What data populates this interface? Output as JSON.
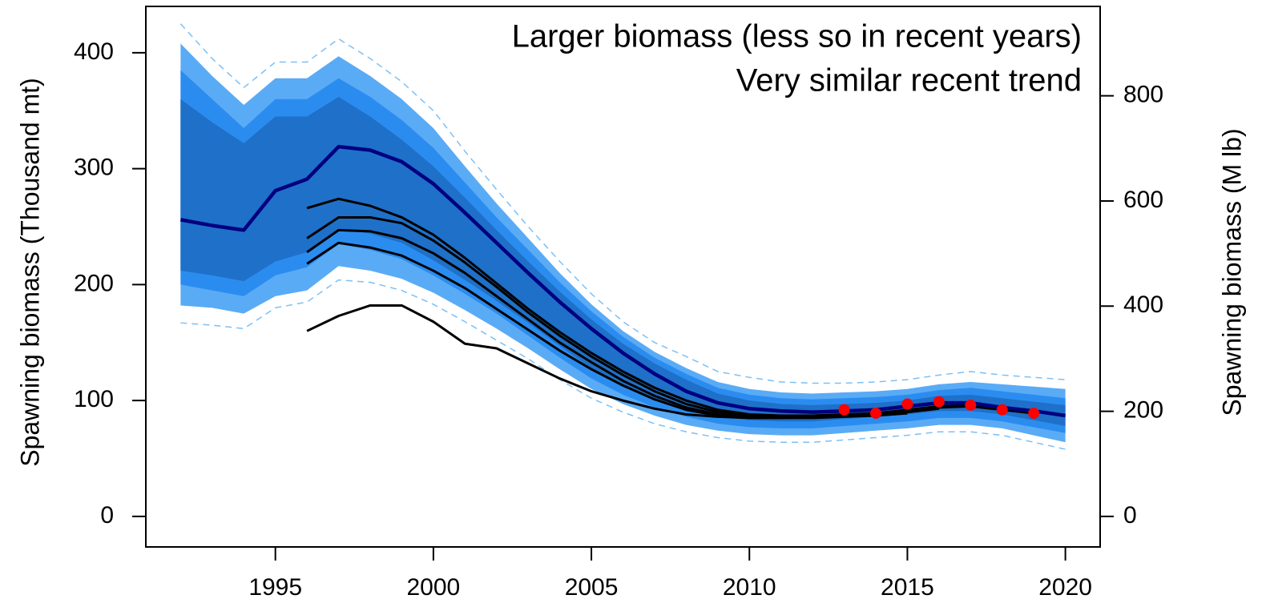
{
  "chart_data": {
    "type": "line",
    "y_label": "Spawning biomass (Thousand mt)",
    "y2_label": "Spawning biomass (M lb)",
    "annotations": [
      "Larger biomass (less so in recent years)",
      "Very similar recent trend"
    ],
    "x": [
      1992,
      1993,
      1994,
      1995,
      1996,
      1997,
      1998,
      1999,
      2000,
      2001,
      2002,
      2003,
      2004,
      2005,
      2006,
      2007,
      2008,
      2009,
      2010,
      2011,
      2012,
      2013,
      2014,
      2015,
      2016,
      2017,
      2018,
      2019,
      2020
    ],
    "xlim": [
      1990.9,
      2021.1
    ],
    "xticks": [
      1995,
      2000,
      2005,
      2010,
      2015,
      2020
    ],
    "ylim": [
      -26.3,
      440
    ],
    "yticks": [
      0,
      100,
      200,
      300,
      400
    ],
    "y2lim": [
      -58,
      970
    ],
    "y2ticks": [
      0,
      200,
      400,
      600,
      800
    ],
    "bands": [
      {
        "color": "#5aabf5",
        "upper": [
          408,
          380,
          355,
          378,
          378,
          397,
          380,
          360,
          335,
          302,
          270,
          240,
          210,
          183,
          160,
          142,
          128,
          116,
          110,
          107,
          106,
          107,
          108,
          110,
          114,
          116,
          114,
          112,
          110
        ],
        "lower": [
          182,
          180,
          175,
          190,
          195,
          216,
          212,
          205,
          193,
          178,
          162,
          145,
          127,
          110,
          97,
          87,
          79,
          74,
          71,
          70,
          70,
          72,
          74,
          76,
          79,
          79,
          76,
          70,
          64
        ]
      },
      {
        "color": "#2b8cf0",
        "upper": [
          385,
          360,
          335,
          360,
          360,
          378,
          362,
          342,
          318,
          288,
          258,
          230,
          202,
          177,
          155,
          137,
          123,
          111,
          105,
          102,
          101,
          102,
          103,
          105,
          109,
          111,
          108,
          105,
          102
        ],
        "lower": [
          200,
          195,
          190,
          208,
          215,
          235,
          230,
          222,
          208,
          192,
          175,
          156,
          137,
          119,
          105,
          94,
          86,
          80,
          77,
          76,
          76,
          78,
          80,
          82,
          85,
          85,
          82,
          77,
          72
        ]
      },
      {
        "color": "#1f70c8",
        "upper": [
          360,
          340,
          322,
          345,
          345,
          362,
          345,
          325,
          302,
          275,
          247,
          220,
          194,
          170,
          149,
          132,
          118,
          106,
          100,
          97,
          96,
          97,
          98,
          100,
          104,
          105,
          102,
          99,
          96
        ],
        "lower": [
          212,
          208,
          203,
          220,
          228,
          248,
          244,
          236,
          221,
          204,
          186,
          167,
          147,
          128,
          112,
          101,
          92,
          86,
          83,
          82,
          82,
          84,
          86,
          88,
          91,
          91,
          88,
          83,
          78
        ]
      }
    ],
    "series": [
      {
        "color": "#7cc0f5",
        "dashed": true,
        "width": 1.5,
        "values": [
          425,
          395,
          370,
          392,
          392,
          412,
          395,
          375,
          350,
          315,
          282,
          250,
          220,
          192,
          168,
          150,
          138,
          125,
          120,
          116,
          115,
          115,
          116,
          118,
          122,
          125,
          122,
          120,
          118
        ]
      },
      {
        "color": "#7cc0f5",
        "dashed": true,
        "width": 1.5,
        "values": [
          167,
          165,
          162,
          180,
          185,
          204,
          202,
          195,
          183,
          168,
          152,
          136,
          118,
          102,
          90,
          80,
          73,
          68,
          65,
          64,
          64,
          66,
          68,
          70,
          73,
          73,
          70,
          64,
          58
        ]
      },
      {
        "color": "#000000",
        "width": 3,
        "values": [
          null,
          null,
          null,
          null,
          266,
          274,
          268,
          258,
          243,
          223,
          201,
          179,
          159,
          141,
          125,
          111,
          100,
          92,
          88,
          87,
          87,
          88,
          89,
          92,
          95,
          95,
          92,
          89,
          null
        ]
      },
      {
        "color": "#000000",
        "width": 3,
        "values": [
          null,
          null,
          null,
          null,
          240,
          258,
          258,
          253,
          238,
          219,
          198,
          176,
          156,
          138,
          122,
          108,
          97,
          90,
          87,
          86,
          86,
          87,
          88,
          91,
          95,
          96,
          93,
          null,
          null
        ]
      },
      {
        "color": "#000000",
        "width": 3,
        "values": [
          null,
          null,
          null,
          null,
          228,
          247,
          246,
          240,
          227,
          210,
          190,
          170,
          150,
          133,
          117,
          104,
          94,
          88,
          86,
          86,
          86,
          87,
          88,
          91,
          94,
          95,
          null,
          null,
          null
        ]
      },
      {
        "color": "#000000",
        "width": 3,
        "values": [
          null,
          null,
          null,
          null,
          218,
          236,
          232,
          225,
          212,
          197,
          179,
          161,
          143,
          127,
          113,
          101,
          92,
          87,
          85,
          85,
          86,
          87,
          88,
          90,
          93,
          null,
          null,
          null,
          null
        ]
      },
      {
        "color": "#000000",
        "width": 3,
        "values": [
          null,
          null,
          null,
          null,
          160,
          173,
          182,
          182,
          168,
          149,
          145,
          132,
          119,
          108,
          100,
          93,
          88,
          86,
          85,
          85,
          85,
          86,
          87,
          89,
          null,
          null,
          null,
          null,
          null
        ]
      },
      {
        "color": "#000080",
        "width": 4.5,
        "values": [
          256,
          251,
          247,
          281,
          291,
          319,
          316,
          306,
          287,
          262,
          236,
          210,
          185,
          162,
          141,
          123,
          108,
          98,
          93,
          91,
          90,
          91,
          92,
          95,
          98,
          98,
          94,
          91,
          87
        ]
      }
    ],
    "points": {
      "color": "#ff0000",
      "x": [
        2013,
        2014,
        2015,
        2016,
        2017,
        2018,
        2019
      ],
      "values": [
        92,
        89,
        97,
        99,
        96,
        92,
        89
      ]
    }
  }
}
